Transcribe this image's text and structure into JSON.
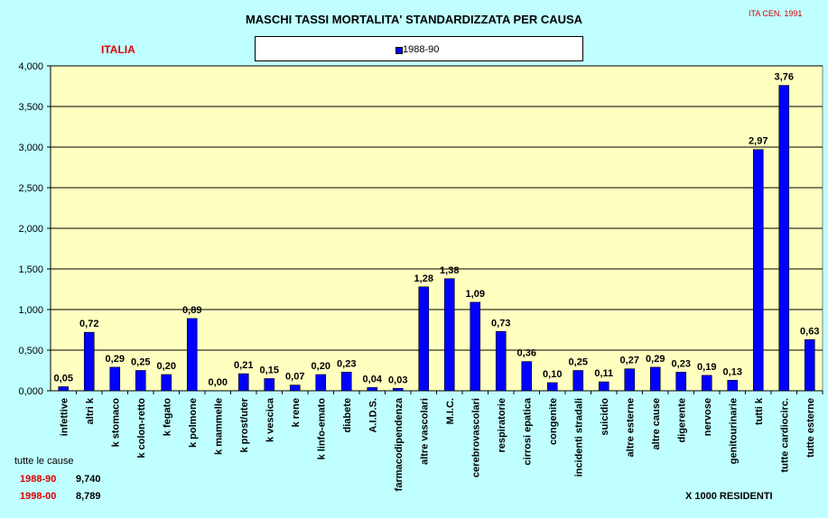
{
  "header": {
    "title": "MASCHI TASSI MORTALITA' STANDARDIZZATA PER CAUSA",
    "source": "ITA CEN. 1991",
    "region": "ITALIA"
  },
  "colors": {
    "bar": "#0000ff",
    "plot_bg": "#ffffc0",
    "page_bg": "#c0ffff",
    "accent_red": "#e00000"
  },
  "chart_data": {
    "type": "bar",
    "title": "MASCHI TASSI MORTALITA' STANDARDIZZATA PER CAUSA",
    "xlabel": "",
    "ylabel": "",
    "ylim": [
      0,
      4
    ],
    "y_ticks": [
      "0,000",
      "0,500",
      "1,000",
      "1,500",
      "2,000",
      "2,500",
      "3,000",
      "3,500",
      "4,000"
    ],
    "grid": true,
    "legend_position": "top-center",
    "categories": [
      "infettive",
      "altri k",
      "k stomaco",
      "k colon-retto",
      "k fegato",
      "k polmone",
      "k mammelle",
      "k prost/uter",
      "k vescica",
      "k rene",
      "k linfo-emato",
      "diabete",
      "A.I.D.S.",
      "farmacodipendenza",
      "altre vascolari",
      "M.I.C.",
      "cerebrovascolari",
      "respiratorie",
      "cirrosi epatica",
      "congenite",
      "incidenti stradali",
      "suicidio",
      "altre esterne",
      "altre cause",
      "digerente",
      "nervose",
      "genitourinarie",
      "tutti k",
      "tutte cardiocirc.",
      "tutte esterne"
    ],
    "series": [
      {
        "name": "1988-90",
        "values": [
          0.05,
          0.72,
          0.29,
          0.25,
          0.2,
          0.89,
          0.0,
          0.21,
          0.15,
          0.07,
          0.2,
          0.23,
          0.04,
          0.03,
          1.28,
          1.38,
          1.09,
          0.73,
          0.36,
          0.1,
          0.25,
          0.11,
          0.27,
          0.29,
          0.23,
          0.19,
          0.13,
          2.97,
          3.76,
          0.63
        ],
        "labels": [
          "0,05",
          "0,72",
          "0,29",
          "0,25",
          "0,20",
          "0,89",
          "0,00",
          "0,21",
          "0,15",
          "0,07",
          "0,20",
          "0,23",
          "0,04",
          "0,03",
          "1,28",
          "1,38",
          "1,09",
          "0,73",
          "0,36",
          "0,10",
          "0,25",
          "0,11",
          "0,27",
          "0,29",
          "0,23",
          "0,19",
          "0,13",
          "2,97",
          "3,76",
          "0,63"
        ]
      }
    ]
  },
  "totals": {
    "title": "tutte le cause",
    "rows": [
      {
        "period": "1988-90",
        "value": "9,740"
      },
      {
        "period": "1998-00",
        "value": "8,789"
      }
    ]
  },
  "footer": {
    "multiplier": "X 1000 RESIDENTI"
  }
}
